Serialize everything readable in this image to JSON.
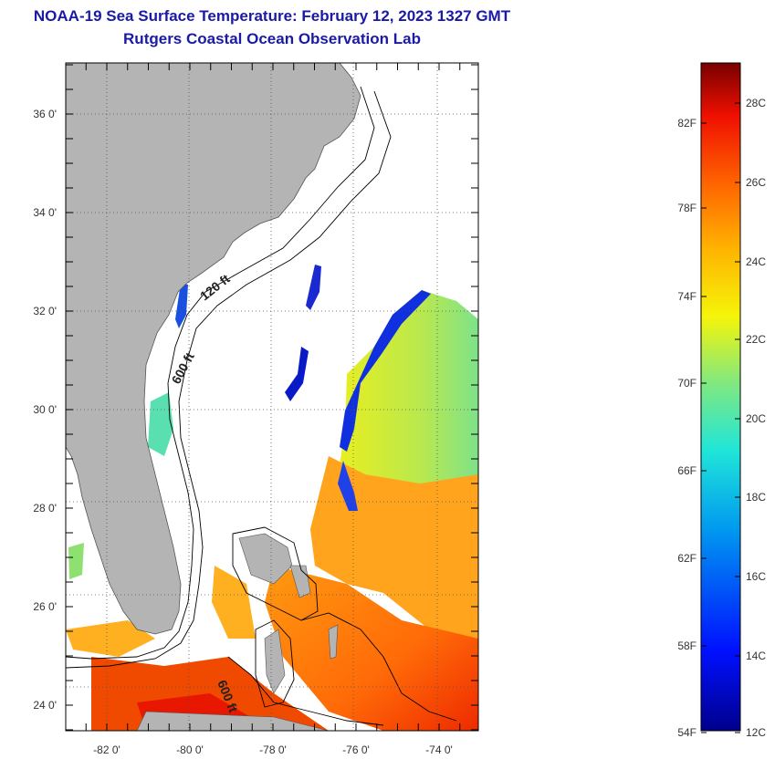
{
  "header": {
    "title": "NOAA-19 Sea Surface Temperature:  February 12, 2023 1327 GMT",
    "subtitle": "Rutgers Coastal Ocean Observation Lab"
  },
  "axes": {
    "lat_labels": [
      "36 0'",
      "34 0'",
      "32 0'",
      "30 0'",
      "28 0'",
      "26 0'",
      "24 0'"
    ],
    "lon_labels": [
      "-82 0'",
      "-80 0'",
      "-78 0'",
      "-76 0'",
      "-74 0'"
    ],
    "lat_values": [
      36,
      34,
      32,
      30,
      28,
      26,
      24
    ],
    "lon_values": [
      -82,
      -80,
      -78,
      -76,
      -74
    ],
    "lat_range": [
      23,
      37
    ],
    "lon_range": [
      -83,
      -73
    ],
    "grid": "dotted"
  },
  "contours": {
    "shallow": "120 ft",
    "deep": "600 ft",
    "deep_south": "600 ft"
  },
  "colorbar": {
    "fahrenheit": [
      "82F",
      "78F",
      "74F",
      "70F",
      "66F",
      "62F",
      "58F",
      "54F"
    ],
    "celsius": [
      "28C",
      "26C",
      "24C",
      "22C",
      "20C",
      "18C",
      "16C",
      "14C",
      "12C"
    ],
    "range_c": [
      12,
      29
    ]
  },
  "colors": {
    "land": "#b4b4b4",
    "title": "#1a1aa6"
  }
}
